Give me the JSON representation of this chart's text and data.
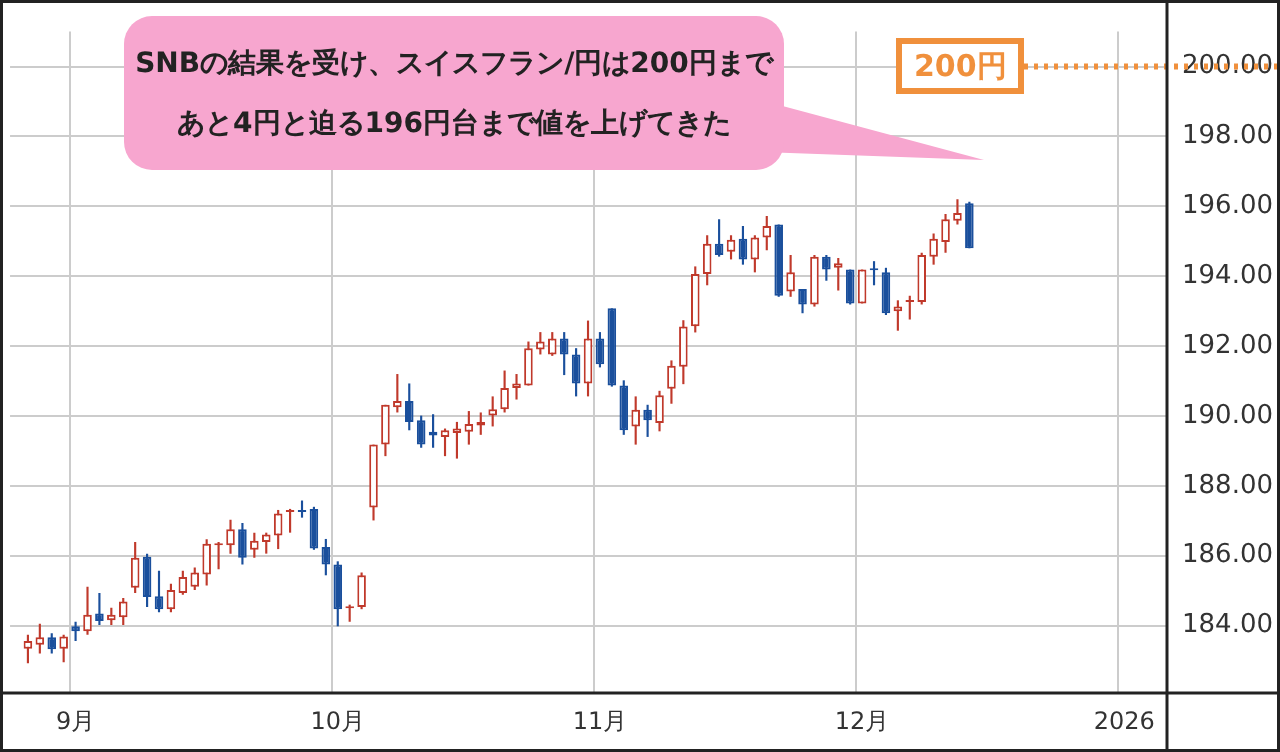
{
  "chart_data": {
    "type": "candlestick",
    "categories": [
      null,
      null,
      null,
      null,
      null,
      "9月",
      null,
      null,
      null,
      null,
      null,
      null,
      null,
      null,
      null,
      null,
      null,
      null,
      null,
      null,
      null,
      null,
      null,
      null,
      null,
      null,
      null,
      "10月",
      null,
      null,
      null,
      null,
      null,
      null,
      null,
      null,
      null,
      null,
      null,
      null,
      null,
      null,
      null,
      null,
      null,
      null,
      null,
      null,
      null,
      "11月",
      null,
      null,
      null,
      null,
      null,
      null,
      null,
      null,
      null,
      null,
      null,
      null,
      null,
      null,
      null,
      null,
      null,
      null,
      null,
      null,
      null,
      "12月",
      null,
      null,
      null,
      null,
      null,
      null,
      null,
      null,
      null,
      null,
      null,
      null,
      null,
      null,
      null,
      null,
      null,
      null,
      null,
      null,
      null,
      "2026",
      null,
      null,
      null
    ],
    "ohlc": [
      null,
      [
        183.34,
        183.74,
        182.92,
        183.56
      ],
      [
        183.45,
        184.05,
        183.2,
        183.67
      ],
      [
        183.67,
        183.78,
        183.2,
        183.32
      ],
      [
        183.34,
        183.74,
        182.95,
        183.69
      ],
      [
        183.98,
        184.11,
        183.56,
        183.84
      ],
      [
        183.84,
        185.11,
        183.74,
        184.31
      ],
      [
        184.35,
        184.93,
        184.02,
        184.13
      ],
      [
        184.15,
        184.51,
        184.02,
        184.31
      ],
      [
        184.24,
        184.79,
        184.02,
        184.69
      ],
      [
        185.08,
        186.39,
        184.93,
        185.94
      ],
      [
        185.97,
        186.06,
        184.53,
        184.82
      ],
      [
        184.84,
        185.57,
        184.38,
        184.47
      ],
      [
        184.47,
        185.2,
        184.38,
        185.02
      ],
      [
        184.93,
        185.57,
        184.88,
        185.39
      ],
      [
        185.11,
        185.66,
        185.02,
        185.52
      ],
      [
        185.46,
        186.47,
        185.15,
        186.34
      ],
      [
        186.3,
        186.39,
        185.61,
        186.34
      ],
      [
        186.3,
        187.03,
        186.06,
        186.76
      ],
      [
        186.76,
        186.94,
        185.75,
        185.94
      ],
      [
        186.17,
        186.66,
        185.94,
        186.43
      ],
      [
        186.39,
        186.66,
        186.06,
        186.61
      ],
      [
        186.58,
        187.31,
        186.19,
        187.21
      ],
      [
        187.25,
        187.34,
        186.66,
        187.3
      ],
      [
        187.27,
        187.58,
        187.09,
        187.25
      ],
      [
        187.34,
        187.4,
        186.17,
        186.21
      ],
      [
        186.25,
        186.48,
        185.44,
        185.75
      ],
      [
        185.75,
        185.84,
        183.98,
        184.47
      ],
      [
        184.5,
        184.6,
        184.11,
        184.53
      ],
      [
        184.53,
        185.52,
        184.47,
        185.44
      ],
      [
        187.38,
        189.18,
        187.01,
        189.18
      ],
      [
        189.18,
        190.32,
        188.85,
        190.32
      ],
      [
        190.25,
        191.2,
        190.1,
        190.43
      ],
      [
        190.43,
        190.93,
        189.59,
        189.83
      ],
      [
        189.88,
        190.01,
        189.09,
        189.18
      ],
      [
        189.55,
        190.05,
        189.09,
        189.44
      ],
      [
        189.4,
        189.64,
        188.85,
        189.59
      ],
      [
        189.51,
        189.83,
        188.78,
        189.64
      ],
      [
        189.55,
        190.14,
        189.18,
        189.77
      ],
      [
        189.73,
        190.1,
        189.46,
        189.83
      ],
      [
        190.01,
        190.56,
        189.7,
        190.19
      ],
      [
        190.19,
        191.3,
        190.1,
        190.8
      ],
      [
        190.8,
        191.2,
        190.47,
        190.93
      ],
      [
        190.87,
        192.13,
        190.87,
        191.94
      ],
      [
        191.9,
        192.4,
        191.76,
        192.13
      ],
      [
        191.76,
        192.4,
        191.72,
        192.22
      ],
      [
        192.22,
        192.4,
        191.17,
        191.76
      ],
      [
        191.76,
        191.94,
        190.56,
        190.93
      ],
      [
        190.93,
        192.73,
        190.56,
        192.22
      ],
      [
        192.22,
        192.4,
        191.39,
        191.48
      ],
      [
        193.08,
        193.08,
        190.84,
        190.87
      ],
      [
        190.87,
        191.02,
        189.46,
        189.59
      ],
      [
        189.7,
        190.56,
        189.18,
        190.18
      ],
      [
        190.18,
        190.32,
        189.4,
        189.88
      ],
      [
        189.8,
        190.72,
        189.56,
        190.59
      ],
      [
        190.78,
        191.59,
        190.35,
        191.44
      ],
      [
        191.41,
        192.74,
        190.91,
        192.56
      ],
      [
        192.57,
        194.28,
        192.39,
        194.06
      ],
      [
        194.06,
        195.17,
        193.74,
        194.93
      ],
      [
        194.93,
        195.63,
        194.56,
        194.61
      ],
      [
        194.7,
        195.17,
        194.48,
        195.04
      ],
      [
        195.07,
        195.44,
        194.33,
        194.48
      ],
      [
        194.48,
        195.17,
        194.11,
        195.11
      ],
      [
        195.11,
        195.72,
        194.74,
        195.44
      ],
      [
        195.48,
        195.48,
        193.41,
        193.44
      ],
      [
        193.56,
        194.61,
        193.41,
        194.11
      ],
      [
        193.63,
        193.63,
        192.94,
        193.19
      ],
      [
        193.19,
        194.61,
        193.13,
        194.56
      ],
      [
        194.56,
        194.61,
        193.87,
        194.19
      ],
      [
        194.24,
        194.52,
        193.59,
        194.37
      ],
      [
        194.19,
        194.19,
        193.19,
        193.22
      ],
      [
        193.22,
        194.19,
        193.22,
        194.19
      ],
      [
        194.2,
        194.43,
        193.74,
        194.17
      ],
      [
        194.11,
        194.24,
        192.89,
        192.94
      ],
      [
        193.0,
        193.31,
        192.44,
        193.13
      ],
      [
        193.26,
        193.44,
        192.76,
        193.31
      ],
      [
        193.26,
        194.67,
        193.19,
        194.61
      ],
      [
        194.56,
        195.22,
        194.33,
        195.07
      ],
      [
        194.98,
        195.78,
        194.67,
        195.63
      ],
      [
        195.59,
        196.2,
        195.48,
        195.81
      ],
      [
        196.09,
        196.13,
        194.8,
        194.8
      ],
      null,
      null,
      null,
      null,
      null,
      null,
      null,
      null,
      null,
      null,
      null,
      null,
      null,
      null,
      null,
      null
    ],
    "colors": [
      null,
      "#c0392b",
      "#c0392b",
      "#1a4f9c",
      "#c0392b",
      "#1a4f9c",
      "#c0392b",
      "#1a4f9c",
      "#c0392b",
      "#c0392b",
      "#c0392b",
      "#1a4f9c",
      "#1a4f9c",
      "#c0392b",
      "#c0392b",
      "#c0392b",
      "#c0392b",
      "#c0392b",
      "#c0392b",
      "#1a4f9c",
      "#c0392b",
      "#c0392b",
      "#c0392b",
      "#c0392b",
      "#1a4f9c",
      "#1a4f9c",
      "#1a4f9c",
      "#1a4f9c",
      "#c0392b",
      "#c0392b",
      "#c0392b",
      "#c0392b",
      "#c0392b",
      "#1a4f9c",
      "#1a4f9c",
      "#1a4f9c",
      "#c0392b",
      "#c0392b",
      "#c0392b",
      "#c0392b",
      "#c0392b",
      "#c0392b",
      "#c0392b",
      "#c0392b",
      "#c0392b",
      "#c0392b",
      "#1a4f9c",
      "#1a4f9c",
      "#c0392b",
      "#1a4f9c",
      "#1a4f9c",
      "#1a4f9c",
      "#c0392b",
      "#1a4f9c",
      "#c0392b",
      "#c0392b",
      "#c0392b",
      "#c0392b",
      "#c0392b",
      "#1a4f9c",
      "#c0392b",
      "#1a4f9c",
      "#c0392b",
      "#c0392b",
      "#1a4f9c",
      "#c0392b",
      "#1a4f9c",
      "#c0392b",
      "#1a4f9c",
      "#c0392b",
      "#1a4f9c",
      "#c0392b",
      "#1a4f9c",
      "#1a4f9c",
      "#c0392b",
      "#c0392b",
      "#c0392b",
      "#c0392b",
      "#c0392b",
      "#c0392b",
      "#1a4f9c",
      null,
      null,
      null,
      null,
      null,
      null,
      null,
      null,
      null,
      null,
      null,
      null,
      null,
      null,
      null,
      null
    ],
    "ylim": [
      182.1,
      201.0
    ],
    "yticks": [
      {
        "value": 184,
        "label": "184.00"
      },
      {
        "value": 186,
        "label": "186.00"
      },
      {
        "value": 188,
        "label": "188.00"
      },
      {
        "value": 190,
        "label": "190.00"
      },
      {
        "value": 192,
        "label": "192.00"
      },
      {
        "value": 194,
        "label": "194.00"
      },
      {
        "value": 196,
        "label": "196.00"
      },
      {
        "value": 198,
        "label": "198.00"
      },
      {
        "value": 200,
        "label": "200.00"
      }
    ],
    "grid": true,
    "ref_lines": [
      {
        "axis": "y",
        "value": 200,
        "label": "200円",
        "color": "#f0903c",
        "line_style": "dotted"
      }
    ],
    "annotations": [
      "SNBの結果を受け、スイスフラン/円は200円まで",
      "あと4円と迫る196円台まで値を上げてきた"
    ]
  }
}
